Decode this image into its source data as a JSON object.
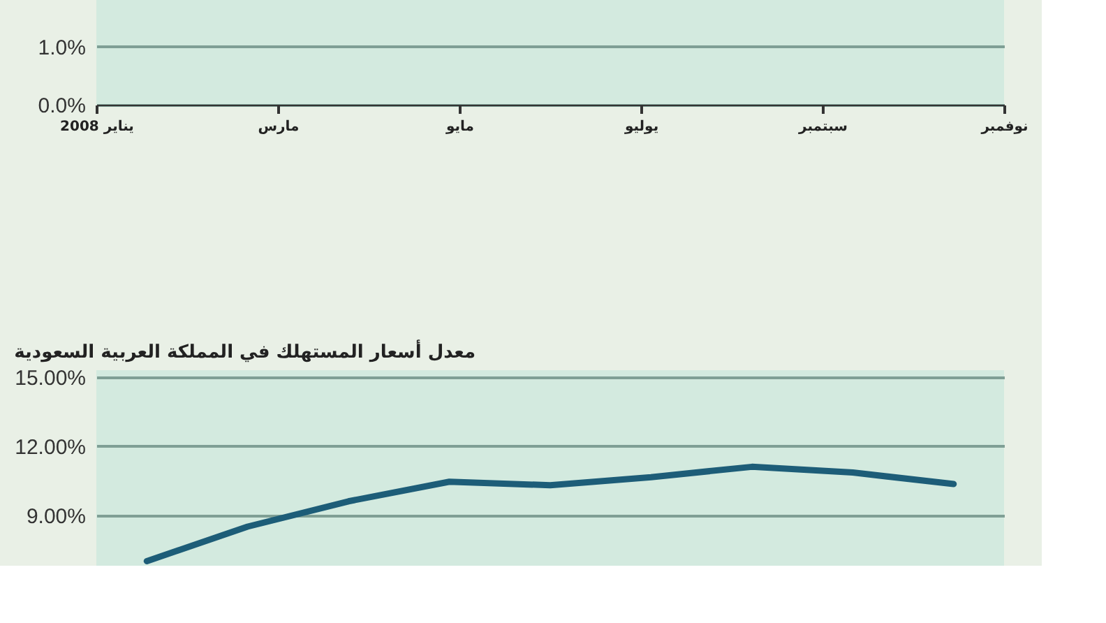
{
  "chart_data": [
    {
      "type": "line",
      "categories": [
        "يناير 2008",
        "مارس",
        "مايو",
        "يوليو",
        "سبتمبر",
        "نوفمبر"
      ],
      "ylim": [
        0,
        1.8
      ],
      "yticks": [
        {
          "value": 0,
          "label": "0.0%"
        },
        {
          "value": 1,
          "label": "1.0%"
        }
      ],
      "grid": "y",
      "values": [
        null,
        null,
        null,
        null,
        null,
        null
      ]
    },
    {
      "type": "line",
      "title": "معدل أسعار المستهلك في المملكة العربية السعودية",
      "categories": [
        null,
        null,
        null,
        null,
        null,
        null,
        null,
        null,
        null
      ],
      "ylim": [
        6.8,
        15.3
      ],
      "yticks": [
        {
          "value": 9,
          "label": "9.00%"
        },
        {
          "value": 12,
          "label": "12.00%"
        },
        {
          "value": 15,
          "label": "15.00%"
        }
      ],
      "grid": "y",
      "tick_labels": "y",
      "series": [
        {
          "color": "#1d5d78",
          "values": [
            7.0,
            8.5,
            9.6,
            10.45,
            10.3,
            10.65,
            11.1,
            10.85,
            10.35
          ]
        }
      ]
    }
  ]
}
